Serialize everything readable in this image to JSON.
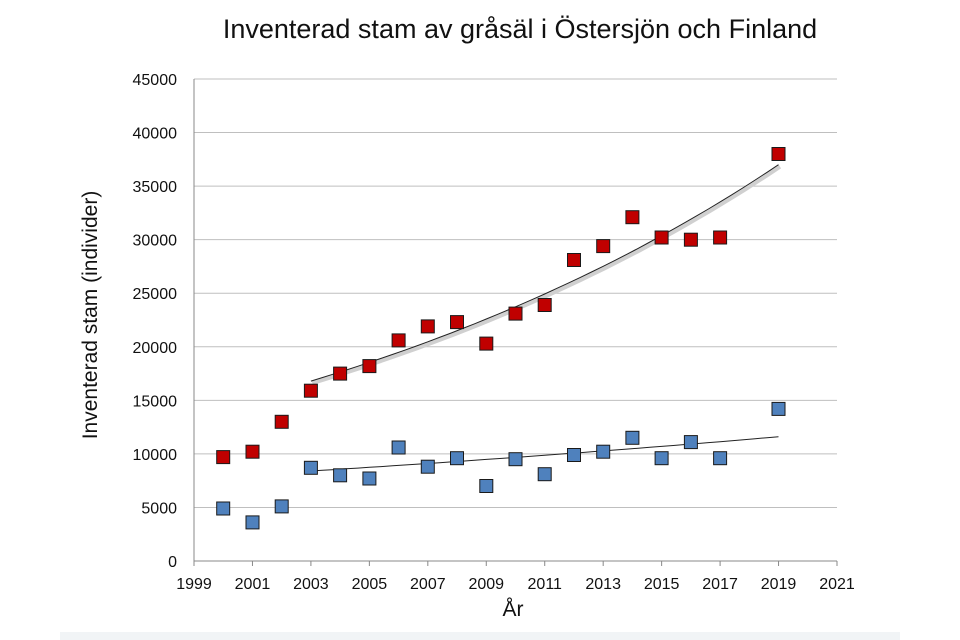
{
  "chart_data": {
    "type": "scatter",
    "title": "Inventerad stam av gråsäl i Östersjön och Finland",
    "xlabel": "År",
    "ylabel": "Inventerad stam (individer)",
    "xlim": [
      1999,
      2021
    ],
    "ylim": [
      0,
      45000
    ],
    "x_ticks": [
      "1999",
      "2001",
      "2003",
      "2005",
      "2007",
      "2009",
      "2011",
      "2013",
      "2015",
      "2017",
      "2019",
      "2021"
    ],
    "y_ticks": [
      "0",
      "5000",
      "10000",
      "15000",
      "20000",
      "25000",
      "30000",
      "35000",
      "40000",
      "45000"
    ],
    "grid": "horizontal",
    "legend": "none",
    "series": [
      {
        "color": "#c00000",
        "marker": "square",
        "x": [
          2000,
          2001,
          2002,
          2003,
          2004,
          2005,
          2006,
          2007,
          2008,
          2009,
          2010,
          2011,
          2012,
          2013,
          2014,
          2015,
          2016,
          2017,
          2019
        ],
        "y": [
          9700,
          10200,
          13000,
          15900,
          17500,
          18200,
          20600,
          21900,
          22300,
          20300,
          23100,
          23900,
          28100,
          29400,
          32100,
          30200,
          30000,
          30200,
          38000
        ],
        "trendline": {
          "type": "exponential",
          "x_range": [
            2003,
            2019
          ],
          "y_range": [
            16800,
            37000
          ]
        }
      },
      {
        "color": "#4f81bd",
        "marker": "square",
        "x": [
          2000,
          2001,
          2002,
          2003,
          2004,
          2005,
          2006,
          2007,
          2008,
          2009,
          2010,
          2011,
          2012,
          2013,
          2014,
          2015,
          2016,
          2017,
          2019
        ],
        "y": [
          4900,
          3600,
          5100,
          8700,
          8000,
          7700,
          10600,
          8800,
          9600,
          7000,
          9500,
          8100,
          9900,
          10200,
          11500,
          9600,
          11100,
          9600,
          14200
        ],
        "trendline": {
          "type": "exponential",
          "x_range": [
            2003,
            2019
          ],
          "y_range": [
            8400,
            11600
          ]
        }
      }
    ]
  }
}
